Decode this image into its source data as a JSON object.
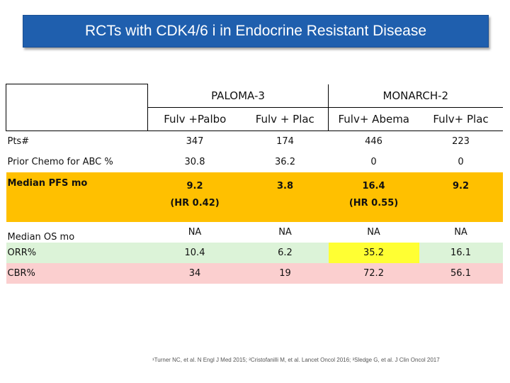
{
  "slide": {
    "title": "RCTs with CDK4/6 i in Endocrine Resistant Disease",
    "footnote": "¹Turner NC, et al. N Engl J Med 2015; ²Cristofanilli M, et al. Lancet Oncol 2016; ³Sledge G, et al. J Clin Oncol 2017"
  },
  "table": {
    "studies": [
      "PALOMA-3",
      "MONARCH-2"
    ],
    "arms": [
      "Fulv +Palbo",
      "Fulv + Plac",
      "Fulv+ Abema",
      "Fulv+ Plac"
    ],
    "rows": [
      {
        "label": "Pts#",
        "values": [
          "347",
          "174",
          "446",
          "223"
        ]
      },
      {
        "label": "Prior Chemo for ABC %",
        "values": [
          "30.8",
          "36.2",
          "0",
          "0"
        ]
      },
      {
        "label": "Median PFS mo",
        "values": [
          "9.2",
          "3.8",
          "16.4",
          "9.2"
        ],
        "hr": [
          "(HR 0.42)",
          "",
          "(HR 0.55)",
          ""
        ]
      },
      {
        "label": "Median OS mo",
        "values": [
          "NA",
          "NA",
          "NA",
          "NA"
        ]
      },
      {
        "label": "ORR%",
        "values": [
          "10.4",
          "6.2",
          "35.2",
          "16.1"
        ]
      },
      {
        "label": "CBR%",
        "values": [
          "34",
          "19",
          "72.2",
          "56.1"
        ]
      }
    ]
  },
  "colors": {
    "title_bar": "#1f5fae",
    "pfs_row": "#ffc000",
    "orr_row": "#dcf3d8",
    "orr_highlight": "#ffff33",
    "cbr_row": "#fbcfcf"
  }
}
